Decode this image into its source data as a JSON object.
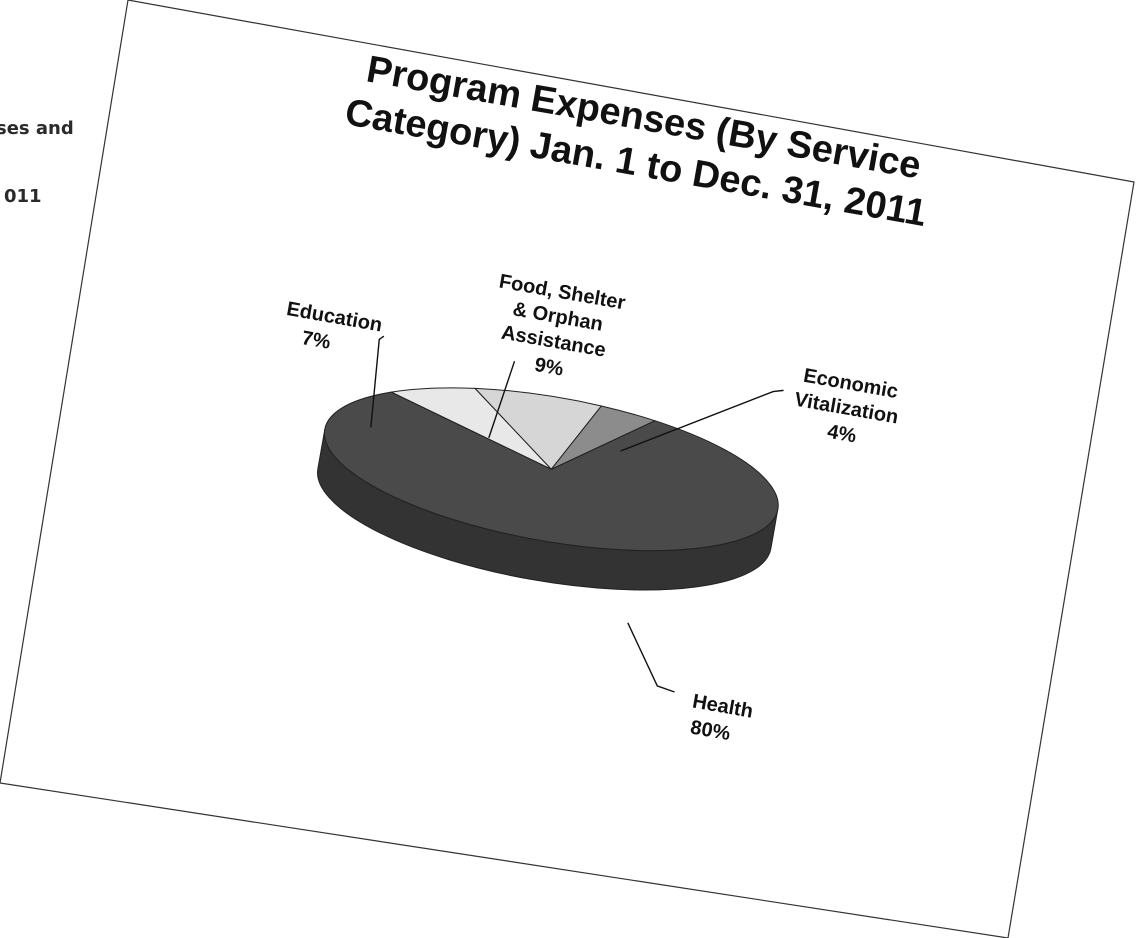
{
  "side_text": {
    "line1": "ses and",
    "line2": "011"
  },
  "colors": {
    "health_top": "#4a4a4a",
    "health_side": "#333333",
    "economic": "#8c8c8c",
    "food": "#d6d6d6",
    "education": "#e8e8e8",
    "outline": "#222222"
  },
  "chart_data": {
    "type": "pie",
    "title_lines": [
      "Program Expenses (By Service",
      "Category) Jan. 1 to Dec. 31, 2011"
    ],
    "slices": [
      {
        "label_lines": [
          "Health"
        ],
        "pct_label": "80%",
        "value": 80
      },
      {
        "label_lines": [
          "Education"
        ],
        "pct_label": "7%",
        "value": 7
      },
      {
        "label_lines": [
          "Food, Shelter",
          "& Orphan",
          "Assistance"
        ],
        "pct_label": "9%",
        "value": 9
      },
      {
        "label_lines": [
          "Economic",
          "Vitalization"
        ],
        "pct_label": "4%",
        "value": 4
      }
    ],
    "style": "3d"
  }
}
